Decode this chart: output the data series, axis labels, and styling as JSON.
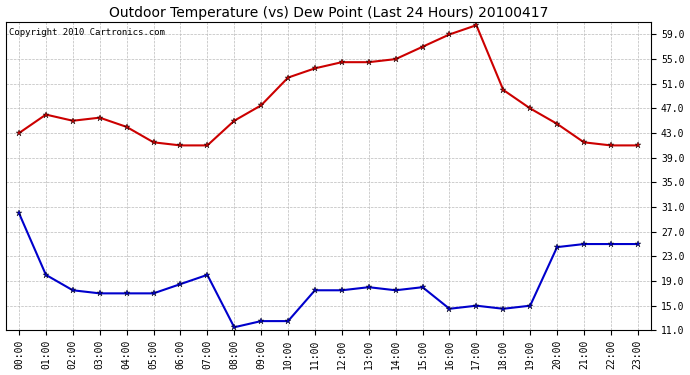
{
  "title": "Outdoor Temperature (vs) Dew Point (Last 24 Hours) 20100417",
  "copyright": "Copyright 2010 Cartronics.com",
  "x_labels": [
    "00:00",
    "01:00",
    "02:00",
    "03:00",
    "04:00",
    "05:00",
    "06:00",
    "07:00",
    "08:00",
    "09:00",
    "10:00",
    "11:00",
    "12:00",
    "13:00",
    "14:00",
    "15:00",
    "16:00",
    "17:00",
    "18:00",
    "19:00",
    "20:00",
    "21:00",
    "22:00",
    "23:00"
  ],
  "temp_data": [
    43.0,
    46.0,
    45.0,
    45.5,
    44.0,
    41.5,
    41.0,
    41.0,
    45.0,
    47.5,
    52.0,
    53.5,
    54.5,
    54.5,
    55.0,
    57.0,
    59.0,
    60.5,
    50.0,
    47.0,
    44.5,
    41.5,
    41.0,
    41.0
  ],
  "dew_data": [
    30.0,
    20.0,
    17.5,
    17.0,
    17.0,
    17.0,
    18.5,
    20.0,
    11.5,
    12.5,
    12.5,
    17.5,
    17.5,
    18.0,
    17.5,
    18.0,
    14.5,
    15.0,
    14.5,
    15.0,
    24.5,
    25.0,
    25.0,
    25.0
  ],
  "temp_color": "#cc0000",
  "dew_color": "#0000cc",
  "marker": "*",
  "marker_size": 5,
  "line_width": 1.5,
  "ylim_min": 11.0,
  "ylim_max": 61.0,
  "yticks": [
    11.0,
    15.0,
    19.0,
    23.0,
    27.0,
    31.0,
    35.0,
    39.0,
    43.0,
    47.0,
    51.0,
    55.0,
    59.0
  ],
  "grid_color": "#bbbbbb",
  "background_color": "#ffffff",
  "title_fontsize": 10,
  "copyright_fontsize": 6.5,
  "tick_fontsize": 7
}
